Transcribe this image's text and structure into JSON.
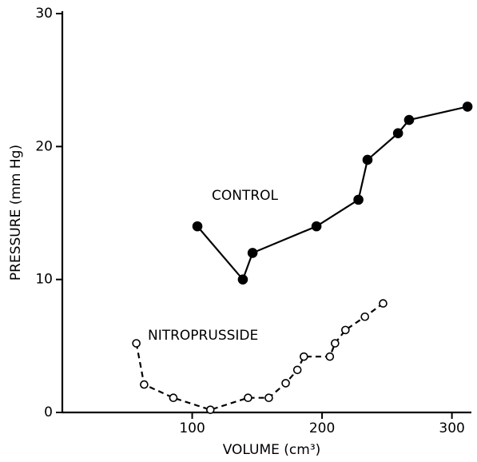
{
  "chart_data": {
    "type": "line",
    "xlabel": "VOLUME (cm³)",
    "ylabel": "PRESSURE (mm Hg)",
    "xlim": [
      0,
      315
    ],
    "ylim": [
      0,
      30
    ],
    "xticks": [
      100,
      200,
      300
    ],
    "yticks": [
      0,
      10,
      20,
      30
    ],
    "series": [
      {
        "name": "CONTROL",
        "color": "#000000",
        "marker": "filled",
        "dashed": false,
        "x": [
          104,
          139,
          146.5,
          195.7,
          228,
          235,
          258.5,
          267,
          312
        ],
        "values": [
          14,
          10,
          12,
          14,
          16,
          19,
          21,
          22,
          23
        ]
      },
      {
        "name": "NITROPRUSSIDE",
        "color": "#000000",
        "marker": "open",
        "dashed": true,
        "x": [
          57,
          63,
          85.5,
          114,
          143,
          159,
          172,
          181,
          186,
          206,
          210,
          218,
          233,
          247
        ],
        "values": [
          5.2,
          2.1,
          1.1,
          0.2,
          1.1,
          1.1,
          2.2,
          3.2,
          4.2,
          4.2,
          5.2,
          6.2,
          7.2,
          8.2
        ]
      }
    ]
  }
}
